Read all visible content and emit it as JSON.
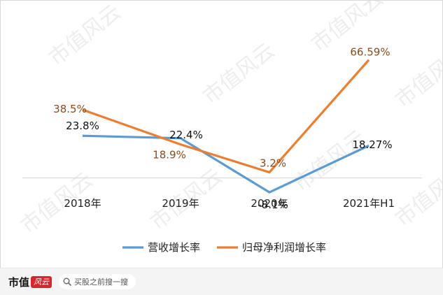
{
  "chart_data": {
    "type": "line",
    "categories": [
      "2018年",
      "2019年",
      "2020年",
      "2021年H1"
    ],
    "series": [
      {
        "name": "营收增长率",
        "values": [
          23.8,
          22.4,
          -8.1,
          18.27
        ],
        "labels": [
          "23.8%",
          "22.4%",
          "-8.1%",
          "18.27%"
        ],
        "color": "#5b9bd5",
        "label_color": "#111111"
      },
      {
        "name": "归母净利润增长率",
        "values": [
          38.5,
          18.9,
          3.2,
          66.59
        ],
        "labels": [
          "38.5%",
          "18.9%",
          "3.2%",
          "66.59%"
        ],
        "color": "#ed7d31",
        "label_color": "#8a4a1c"
      }
    ],
    "ylim": [
      -12,
      72
    ],
    "grid": false,
    "legend": "bottom"
  },
  "watermark": {
    "text": "市值风云"
  },
  "footer": {
    "brand": "市值",
    "brand_seal": "风云",
    "search_icon": "search-icon",
    "search_placeholder": "买股之前搜一搜"
  }
}
